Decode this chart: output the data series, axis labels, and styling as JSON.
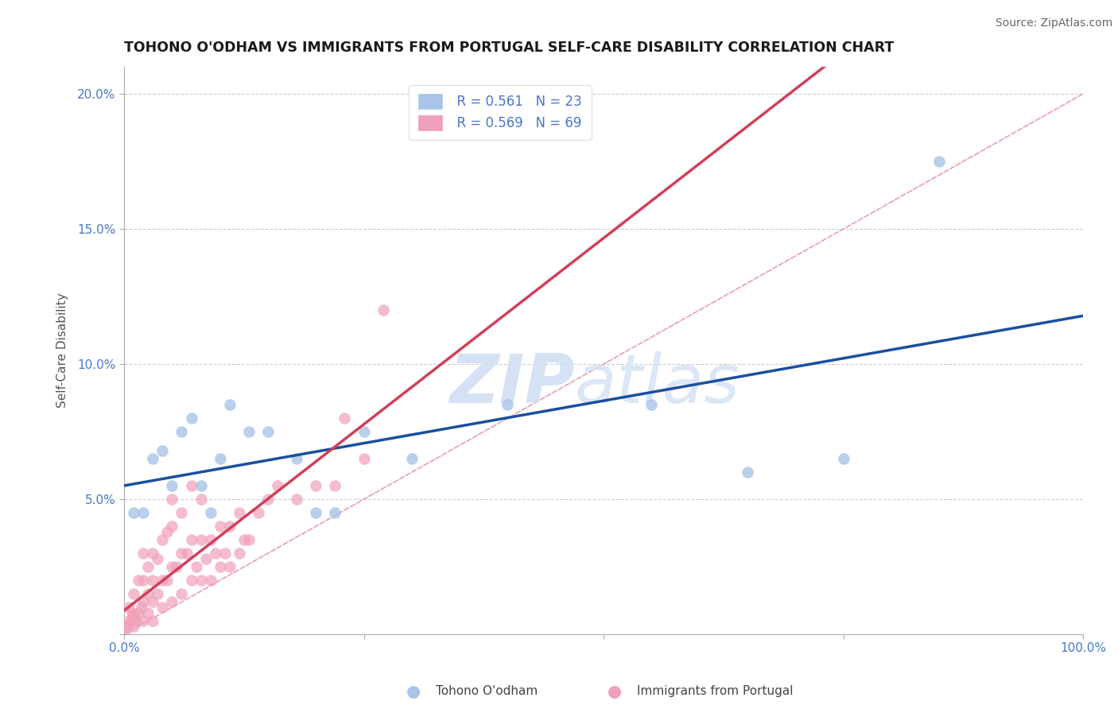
{
  "title": "TOHONO O'ODHAM VS IMMIGRANTS FROM PORTUGAL SELF-CARE DISABILITY CORRELATION CHART",
  "source": "Source: ZipAtlas.com",
  "ylabel": "Self-Care Disability",
  "xlim": [
    0,
    100
  ],
  "ylim": [
    0,
    21
  ],
  "legend_r1": "R = 0.561",
  "legend_n1": "N = 23",
  "legend_r2": "R = 0.569",
  "legend_n2": "N = 69",
  "blue_color": "#a8c4e8",
  "pink_color": "#f0a0b8",
  "blue_line_color": "#1a4fa0",
  "pink_line_color": "#d0405a",
  "diag_color": "#e8a0b0",
  "tick_color": "#4878c8",
  "watermark_zip": "ZIP",
  "watermark_atlas": "atlas",
  "blue_scatter_x": [
    1,
    2,
    3,
    4,
    5,
    6,
    7,
    8,
    9,
    10,
    11,
    13,
    15,
    18,
    20,
    22,
    25,
    30,
    40,
    55,
    65,
    75,
    85
  ],
  "blue_scatter_y": [
    4.5,
    4.5,
    6.5,
    6.8,
    5.5,
    7.5,
    8.0,
    5.5,
    4.5,
    6.5,
    8.5,
    7.5,
    7.5,
    6.5,
    4.5,
    4.5,
    7.5,
    6.5,
    8.5,
    8.5,
    6.0,
    6.5,
    17.5
  ],
  "pink_scatter_x": [
    0.2,
    0.3,
    0.5,
    0.5,
    0.7,
    0.8,
    1,
    1,
    1,
    1.2,
    1.5,
    1.5,
    1.8,
    2,
    2,
    2,
    2,
    2.5,
    2.5,
    2.5,
    3,
    3,
    3,
    3,
    3.5,
    3.5,
    4,
    4,
    4,
    4.5,
    4.5,
    5,
    5,
    5,
    5,
    5.5,
    6,
    6,
    6,
    6.5,
    7,
    7,
    7,
    7.5,
    8,
    8,
    8,
    8.5,
    9,
    9,
    9.5,
    10,
    10,
    10.5,
    11,
    11,
    12,
    12,
    12.5,
    13,
    14,
    15,
    16,
    18,
    20,
    22,
    23,
    25,
    27
  ],
  "pink_scatter_y": [
    0.2,
    0.3,
    0.5,
    1.0,
    0.5,
    0.8,
    0.3,
    0.7,
    1.5,
    0.5,
    0.8,
    2.0,
    1.0,
    0.5,
    1.2,
    2.0,
    3.0,
    0.8,
    1.5,
    2.5,
    0.5,
    1.2,
    2.0,
    3.0,
    1.5,
    2.8,
    1.0,
    2.0,
    3.5,
    2.0,
    3.8,
    1.2,
    2.5,
    4.0,
    5.0,
    2.5,
    1.5,
    3.0,
    4.5,
    3.0,
    2.0,
    3.5,
    5.5,
    2.5,
    2.0,
    3.5,
    5.0,
    2.8,
    2.0,
    3.5,
    3.0,
    2.5,
    4.0,
    3.0,
    2.5,
    4.0,
    3.0,
    4.5,
    3.5,
    3.5,
    4.5,
    5.0,
    5.5,
    5.0,
    5.5,
    5.5,
    8.0,
    6.5,
    12.0
  ]
}
